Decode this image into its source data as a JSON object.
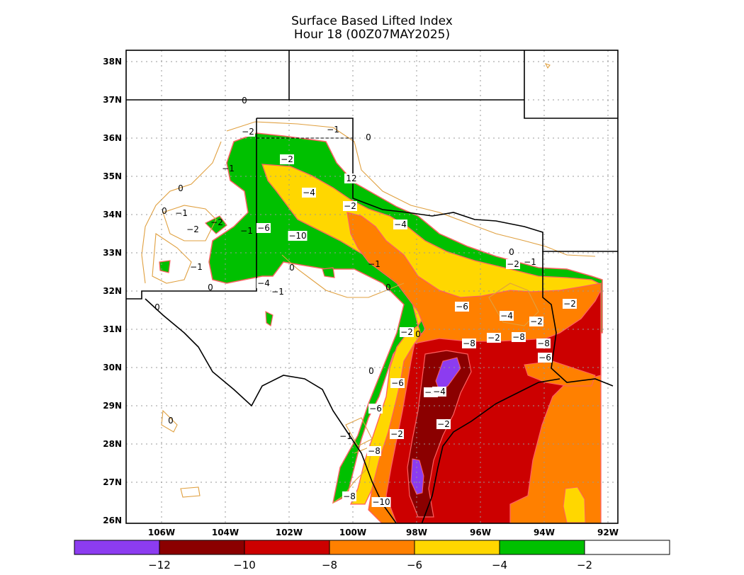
{
  "title": {
    "line1": "Surface Based Lifted Index",
    "line2": "Hour 18 (00Z07MAY2025)"
  },
  "axes": {
    "lat_labels": [
      "38N",
      "37N",
      "36N",
      "35N",
      "34N",
      "33N",
      "32N",
      "31N",
      "30N",
      "29N",
      "28N",
      "27N",
      "26N"
    ],
    "lon_labels": [
      "106W",
      "104W",
      "102W",
      "100W",
      "98W",
      "96W",
      "94W",
      "92W"
    ]
  },
  "colorbar": {
    "colors": [
      "#8c3cf0",
      "#8b0000",
      "#cc0000",
      "#ff8000",
      "#ffd700",
      "#00c000",
      "#ffffff"
    ],
    "labels": [
      "−12",
      "−10",
      "−8",
      "−6",
      "−4",
      "−2"
    ]
  },
  "contour_labels": {
    "boxed": [
      "−2",
      "−4",
      "−2",
      "−4",
      "−6",
      "−4",
      "−2",
      "−2",
      "−2",
      "−6",
      "−4",
      "−4",
      "−6",
      "−2",
      "−2",
      "−8",
      "−8",
      "−8",
      "−6",
      "−8",
      "−10",
      "12",
      "−2",
      "−6",
      "−10",
      "−4",
      "−2",
      "−8",
      "−2"
    ],
    "plain": [
      "0",
      "−1",
      "0",
      "−1",
      "0",
      "−1",
      "−2",
      "−2",
      "0",
      "−1",
      "0",
      "−1",
      "0",
      "−1",
      "0",
      "−1",
      "0",
      "0",
      "−1",
      "0",
      "−1",
      "0",
      "0"
    ]
  }
}
